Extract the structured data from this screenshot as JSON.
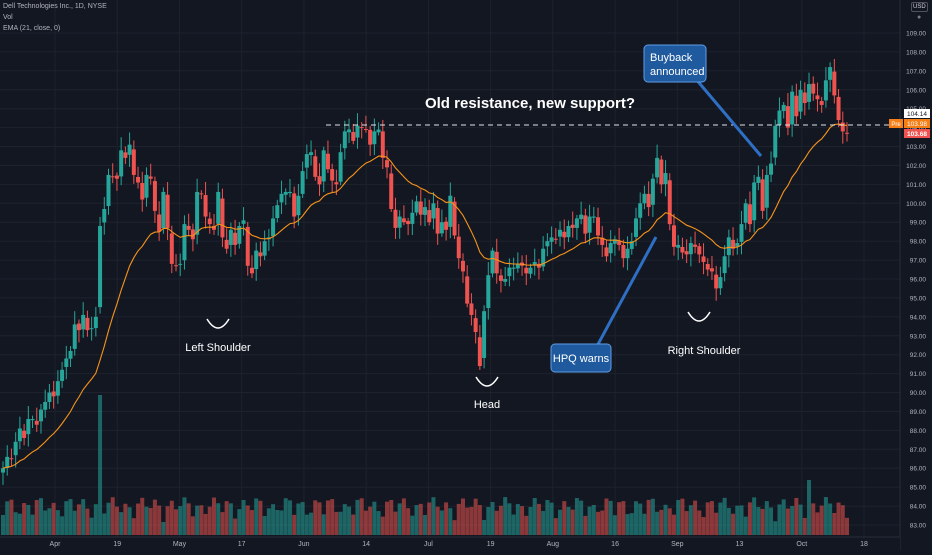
{
  "header": {
    "title": "Dell Technologies Inc., 1D, NYSE",
    "vol_label": "Vol",
    "ema_label": "EMA (21, close, 0)"
  },
  "currency_badge": "USD",
  "icons": {
    "lock": "lock-icon",
    "volume_flag": "flag-icon"
  },
  "colors": {
    "background": "#131722",
    "grid": "#1e222d",
    "up": "#26a69a",
    "down": "#ef5350",
    "ema": "#f7931a",
    "callout": "#1f5a9e",
    "text": "#d1d4dc"
  },
  "chart_data": {
    "type": "candlestick",
    "title": "Dell Technologies Inc., 1D, NYSE",
    "ylim": [
      82.5,
      109.6
    ],
    "y_ticks": [
      "83.00",
      "84.00",
      "85.00",
      "86.00",
      "87.00",
      "88.00",
      "89.00",
      "90.00",
      "91.00",
      "92.00",
      "93.00",
      "94.00",
      "95.00",
      "96.00",
      "97.00",
      "98.00",
      "99.00",
      "100.00",
      "101.00",
      "102.00",
      "103.00",
      "104.00",
      "105.00",
      "106.00",
      "107.00",
      "108.00",
      "109.00"
    ],
    "x_tick_labels": [
      "Apr",
      "19",
      "May",
      "17",
      "Jun",
      "14",
      "Jul",
      "19",
      "Aug",
      "16",
      "Sep",
      "13",
      "Oct",
      "18"
    ],
    "grid": true,
    "closes": [
      86.0,
      86.6,
      86.5,
      87.4,
      88.1,
      87.6,
      88.6,
      88.6,
      88.3,
      89.1,
      89.5,
      90.0,
      89.8,
      90.6,
      91.2,
      91.8,
      92.2,
      93.6,
      93.3,
      94.1,
      93.3,
      93.4,
      94.0,
      98.8,
      99.7,
      101.5,
      101.4,
      101.3,
      102.8,
      102.4,
      103.1,
      101.5,
      101.1,
      100.2,
      101.5,
      101.3,
      99.6,
      98.5,
      100.6,
      98.7,
      96.8,
      96.7,
      96.8,
      98.9,
      98.6,
      98.1,
      100.6,
      100.5,
      99.3,
      98.9,
      98.6,
      100.6,
      98.2,
      97.6,
      98.6,
      97.8,
      98.8,
      99.1,
      96.7,
      96.3,
      97.5,
      97.2,
      98.0,
      98.2,
      99.2,
      99.9,
      100.5,
      100.6,
      100.6,
      99.3,
      100.4,
      101.7,
      102.6,
      102.7,
      101.4,
      101.0,
      102.8,
      101.8,
      101.2,
      101.0,
      102.7,
      103.8,
      103.9,
      103.3,
      104.1,
      104.0,
      103.9,
      103.1,
      103.8,
      103.9,
      102.4,
      101.9,
      99.7,
      98.7,
      99.3,
      99.0,
      98.9,
      99.5,
      100.1,
      99.4,
      99.8,
      99.0,
      100.0,
      98.4,
      99.0,
      98.6,
      100.4,
      98.3,
      97.1,
      96.4,
      94.7,
      94.1,
      93.2,
      91.4,
      94.3,
      96.2,
      97.5,
      96.3,
      95.9,
      96.0,
      96.6,
      96.6,
      96.8,
      96.7,
      96.3,
      96.6,
      96.9,
      96.6,
      97.6,
      98.0,
      98.2,
      98.1,
      98.6,
      98.2,
      98.8,
      98.7,
      99.2,
      99.4,
      98.4,
      99.3,
      99.3,
      98.3,
      97.8,
      97.2,
      97.9,
      98.1,
      97.8,
      97.1,
      97.6,
      98.0,
      99.2,
      100.0,
      100.5,
      99.8,
      101.3,
      102.4,
      101.0,
      101.6,
      98.9,
      97.7,
      97.8,
      97.4,
      97.3,
      97.9,
      97.7,
      97.3,
      96.9,
      96.5,
      96.4,
      95.5,
      96.1,
      97.2,
      98.2,
      97.6,
      97.9,
      98.9,
      100.0,
      98.9,
      101.1,
      101.4,
      99.6,
      101.5,
      102.1,
      104.1,
      104.9,
      105.2,
      104.0,
      105.9,
      104.6,
      106.0,
      105.3,
      106.3,
      105.8,
      105.5,
      105.2,
      106.5,
      107.2,
      105.7,
      104.4,
      103.8,
      103.7
    ],
    "ema": {
      "name": "EMA (21, close, 0)",
      "period": 21
    },
    "volume": {
      "name": "Vol"
    },
    "resistance_level": 104.14,
    "price_labels": [
      "104.14",
      "103.98",
      "103.68"
    ],
    "price_tag": "Pre",
    "annotations": {
      "headline": "Old resistance, new support?",
      "left_shoulder": "Left Shoulder",
      "head": "Head",
      "right_shoulder": "Right Shoulder",
      "hpq": "HPQ warns",
      "buyback_line1": "Buyback",
      "buyback_line2": "announced"
    }
  }
}
